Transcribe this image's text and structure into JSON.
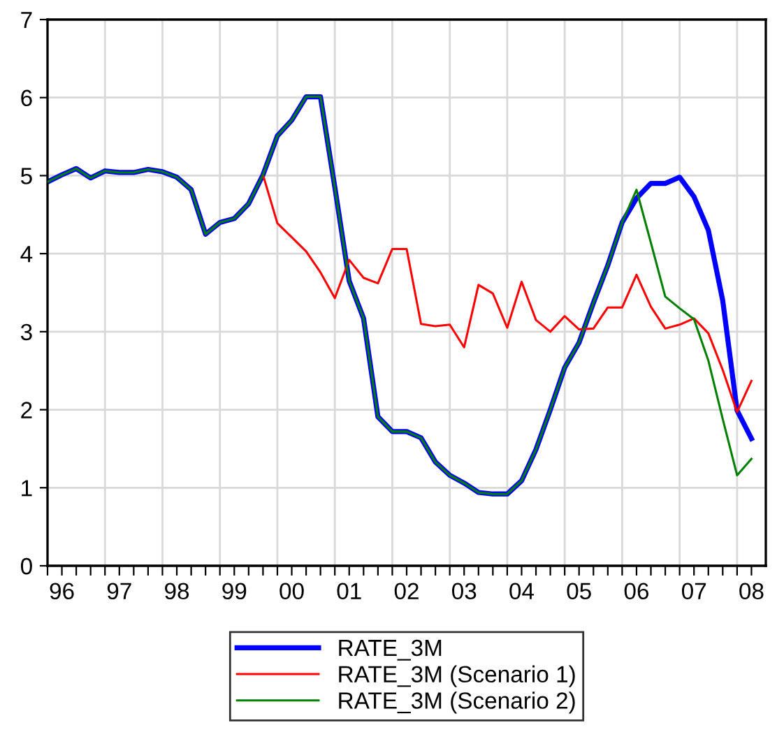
{
  "chart_data": {
    "type": "line",
    "categories": [
      null,
      "96",
      null,
      null,
      null,
      "97",
      null,
      null,
      null,
      "98",
      null,
      null,
      null,
      "99",
      null,
      null,
      null,
      "00",
      null,
      null,
      null,
      "01",
      null,
      null,
      null,
      "02",
      null,
      null,
      null,
      "03",
      null,
      null,
      null,
      "04",
      null,
      null,
      null,
      "05",
      null,
      null,
      null,
      "06",
      null,
      null,
      null,
      "07",
      null,
      null,
      null,
      "08"
    ],
    "series": [
      {
        "name": "RATE_3M",
        "color": "#0000ff",
        "values": [
          4.92,
          5.01,
          5.09,
          4.97,
          5.06,
          5.04,
          5.04,
          5.08,
          5.05,
          4.98,
          4.82,
          4.25,
          4.4,
          4.45,
          4.64,
          5.01,
          5.51,
          5.71,
          6.01,
          6.01,
          4.85,
          3.65,
          3.17,
          1.91,
          1.72,
          1.72,
          1.64,
          1.33,
          1.16,
          1.06,
          0.94,
          0.92,
          0.92,
          1.09,
          1.49,
          2.0,
          2.54,
          2.86,
          3.37,
          3.85,
          4.4,
          4.71,
          4.9,
          4.9,
          4.98,
          4.73,
          4.3,
          3.4,
          1.99,
          1.63
        ]
      },
      {
        "name": "RATE_3M (Scenario 1)",
        "color": "#ff0000",
        "values": [
          null,
          null,
          null,
          null,
          null,
          null,
          null,
          null,
          null,
          null,
          null,
          null,
          null,
          null,
          null,
          5.01,
          4.39,
          4.21,
          4.03,
          3.76,
          3.43,
          3.92,
          3.69,
          3.62,
          4.06,
          4.06,
          3.1,
          3.07,
          3.09,
          2.8,
          3.6,
          3.49,
          3.05,
          3.64,
          3.15,
          3.0,
          3.2,
          3.03,
          3.04,
          3.31,
          3.31,
          3.73,
          3.32,
          3.04,
          3.09,
          3.17,
          2.98,
          2.51,
          1.97,
          2.37
        ]
      },
      {
        "name": "RATE_3M (Scenario 2)",
        "color": "#008000",
        "values": [
          4.92,
          5.01,
          5.09,
          4.97,
          5.06,
          5.04,
          5.04,
          5.08,
          5.05,
          4.98,
          4.82,
          4.25,
          4.4,
          4.45,
          4.64,
          5.01,
          5.51,
          5.71,
          6.01,
          6.01,
          4.85,
          3.65,
          3.17,
          1.91,
          1.72,
          1.72,
          1.64,
          1.33,
          1.16,
          1.06,
          0.94,
          0.92,
          0.92,
          1.09,
          1.49,
          2.0,
          2.54,
          2.86,
          3.37,
          3.85,
          4.4,
          4.82,
          4.14,
          3.45,
          3.3,
          3.16,
          2.63,
          1.88,
          1.16,
          1.37
        ]
      }
    ],
    "ylim": [
      0,
      7
    ],
    "yticks": [
      0,
      1,
      2,
      3,
      4,
      5,
      6,
      7
    ],
    "grid": true,
    "legend": "bottom",
    "marker": "none",
    "line_style": "solid"
  }
}
